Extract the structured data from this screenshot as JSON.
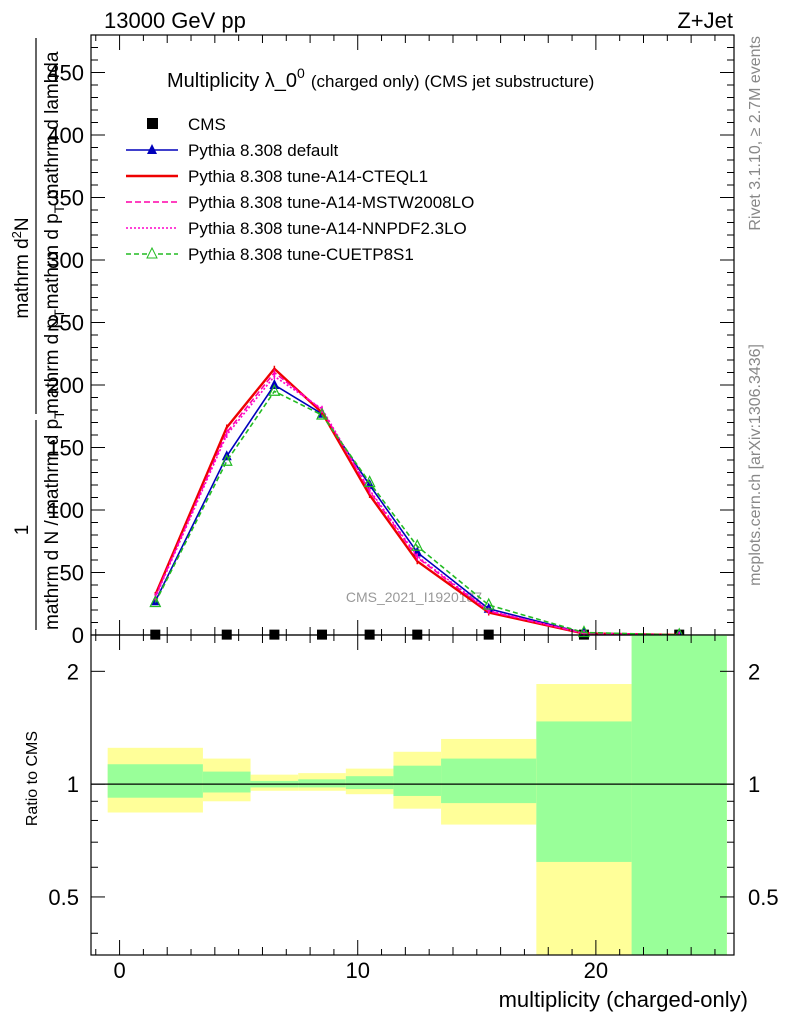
{
  "header": {
    "energy_label": "13000 GeV pp",
    "process_label": "Z+Jet"
  },
  "side_labels": {
    "rivet": "Rivet 3.1.10, ≥ 2.7M events",
    "mcplots": "mcplots.cern.ch [arXiv:1306.3436]"
  },
  "watermark": "CMS_2021_I1920187",
  "chart_data": [
    {
      "type": "line",
      "panel": "main",
      "title_main": "Multiplicity λ_0",
      "title_sup": "0",
      "title_suffix": "(charged only) (CMS jet substructure)",
      "ylabel_parts": [
        "1",
        "mathrm d N / mathrm d p",
        "T",
        "mathrm d N",
        "mathrm d p",
        "T",
        "mathrm d p",
        "T",
        "mathrm d lambda"
      ],
      "ylabel": {
        "numerator": "1",
        "denominator_a": "mathrm d N / mathrm d p",
        "denominator_a_sub": "T",
        "right_num": "mathrm d",
        "right_num_sup": "2",
        "right_num_tail": "N",
        "right_den_a": "mathrm d p",
        "right_den_a_sub": "T",
        "right_den_b": "mathrm d p",
        "right_den_b_sub": "T",
        "right_den_c": " mathrm d lambda"
      },
      "xlim": [
        -1.2,
        25.8
      ],
      "ylim": [
        0,
        480
      ],
      "yticks": [
        0,
        50,
        100,
        150,
        200,
        250,
        300,
        350,
        400,
        450
      ],
      "legend_position": "top-left",
      "data": {
        "name": "CMS",
        "x": [
          1.5,
          4.5,
          6.5,
          8.5,
          10.5,
          12.5,
          15.5,
          19.5,
          23.5
        ],
        "y": [
          0.3,
          0.3,
          0.3,
          0.3,
          0.3,
          0.3,
          0.3,
          0.3,
          0.3
        ],
        "color": "#000000"
      },
      "series": [
        {
          "name": "Pythia 8.308 default",
          "color": "#0000bb",
          "dash": "",
          "marker": "triangle",
          "x": [
            1.5,
            4.5,
            6.5,
            8.5,
            10.5,
            12.5,
            15.5,
            19.5,
            23.5
          ],
          "y": [
            27,
            143,
            200,
            177,
            120,
            66,
            21,
            1.5,
            0.1
          ]
        },
        {
          "name": "Pythia 8.308 tune-A14-CTEQL1",
          "color": "#ee0000",
          "dash": "",
          "marker": "none",
          "x": [
            1.5,
            4.5,
            6.5,
            8.5,
            10.5,
            12.5,
            15.5,
            19.5,
            23.5
          ],
          "y": [
            32,
            166,
            213,
            178,
            112,
            59,
            18,
            1.2,
            0.1
          ]
        },
        {
          "name": "Pythia 8.308 tune-A14-MSTW2008LO",
          "color": "#ff00aa",
          "dash": "6,3",
          "marker": "none",
          "x": [
            1.5,
            4.5,
            6.5,
            8.5,
            10.5,
            12.5,
            15.5,
            19.5,
            23.5
          ],
          "y": [
            31,
            162,
            210,
            180,
            115,
            62,
            19,
            1.3,
            0.1
          ]
        },
        {
          "name": "Pythia 8.308 tune-A14-NNPDF2.3LO",
          "color": "#ff00cc",
          "dash": "2,2",
          "marker": "none",
          "x": [
            1.5,
            4.5,
            6.5,
            8.5,
            10.5,
            12.5,
            15.5,
            19.5,
            23.5
          ],
          "y": [
            30,
            160,
            207,
            181,
            116,
            63,
            19.5,
            1.3,
            0.1
          ]
        },
        {
          "name": "Pythia 8.308 tune-CUETP8S1",
          "color": "#22bb22",
          "dash": "5,3",
          "marker": "triangle-open",
          "x": [
            1.5,
            4.5,
            6.5,
            8.5,
            10.5,
            12.5,
            15.5,
            19.5,
            23.5
          ],
          "y": [
            26,
            139,
            195,
            176,
            122,
            71,
            24,
            2,
            0.1
          ]
        }
      ]
    },
    {
      "type": "area",
      "panel": "ratio",
      "ylabel": "Ratio to CMS",
      "xlabel": "multiplicity (charged-only)",
      "xlim": [
        -1.2,
        25.8
      ],
      "ylim": [
        0.35,
        2.5
      ],
      "log_y": true,
      "yticks": [
        0.5,
        1,
        2
      ],
      "xticks": [
        0,
        10,
        20
      ],
      "reference_line": 1,
      "bins": [
        {
          "lo": -0.5,
          "hi": 3.5,
          "stat": [
            0.92,
            1.13
          ],
          "total": [
            0.84,
            1.25
          ]
        },
        {
          "lo": 3.5,
          "hi": 5.5,
          "stat": [
            0.95,
            1.08
          ],
          "total": [
            0.9,
            1.17
          ]
        },
        {
          "lo": 5.5,
          "hi": 7.5,
          "stat": [
            0.98,
            1.02
          ],
          "total": [
            0.96,
            1.06
          ]
        },
        {
          "lo": 7.5,
          "hi": 9.5,
          "stat": [
            0.98,
            1.03
          ],
          "total": [
            0.96,
            1.07
          ]
        },
        {
          "lo": 9.5,
          "hi": 11.5,
          "stat": [
            0.97,
            1.05
          ],
          "total": [
            0.94,
            1.1
          ]
        },
        {
          "lo": 11.5,
          "hi": 13.5,
          "stat": [
            0.93,
            1.12
          ],
          "total": [
            0.86,
            1.22
          ]
        },
        {
          "lo": 13.5,
          "hi": 17.5,
          "stat": [
            0.89,
            1.17
          ],
          "total": [
            0.78,
            1.32
          ]
        },
        {
          "lo": 17.5,
          "hi": 21.5,
          "stat": [
            0.62,
            1.47
          ],
          "total": [
            0.35,
            1.85
          ]
        },
        {
          "lo": 21.5,
          "hi": 25.5,
          "stat": [
            0.35,
            2.5
          ],
          "total": [
            0.35,
            2.5
          ]
        }
      ],
      "colors": {
        "stat": "#99ff99",
        "total": "#ffff99"
      }
    }
  ]
}
